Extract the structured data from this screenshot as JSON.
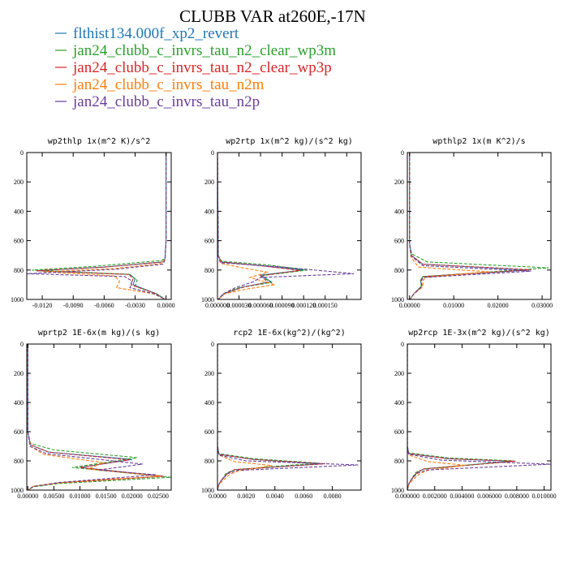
{
  "page_title": "CLUBB VAR at260E,-17N",
  "legend": [
    {
      "label": "flthist134.000f_xp2_revert",
      "color": "#1f77b4"
    },
    {
      "label": "jan24_clubb_c_invrs_tau_n2_clear_wp3m",
      "color": "#2ca02c"
    },
    {
      "label": "jan24_clubb_c_invrs_tau_n2_clear_wp3p",
      "color": "#d62728"
    },
    {
      "label": "jan24_clubb_c_invrs_tau_n2m",
      "color": "#ff7f0e"
    },
    {
      "label": "jan24_clubb_c_invrs_tau_n2p",
      "color": "#6a3d9a"
    }
  ],
  "chart_data": [
    {
      "type": "line",
      "title": "wp2thlp  1x(m^2 K)/s^2",
      "xlim": [
        -0.0135,
        0.0005
      ],
      "ylim": [
        1000,
        0
      ],
      "xticks": [
        -0.012,
        -0.009,
        -0.006,
        -0.003,
        0.0
      ],
      "xtick_labels": [
        "-0.0120",
        "-0.0090",
        "-0.0060",
        "-0.0030",
        "0.0000"
      ],
      "yticks": [
        0,
        200,
        400,
        600,
        800,
        1000
      ],
      "ytick_labels": [
        "0",
        "200",
        "400",
        "600",
        "800",
        "1000"
      ],
      "series": [
        {
          "style": "solid",
          "x": [
            0,
            0,
            -0.0001,
            -0.0003,
            -0.006,
            -0.0125,
            -0.0035,
            -0.003,
            -0.0032,
            -0.001,
            -0.0001
          ],
          "y": [
            0,
            600,
            720,
            745,
            780,
            805,
            830,
            860,
            900,
            960,
            1000
          ]
        },
        {
          "style": "dashed",
          "x": [
            0,
            0,
            -0.0001,
            -0.0004,
            -0.007,
            -0.013,
            -0.0035,
            -0.0028,
            -0.003,
            -0.0008,
            -0.0001
          ],
          "y": [
            0,
            600,
            715,
            735,
            775,
            800,
            830,
            870,
            910,
            965,
            1000
          ]
        },
        {
          "style": "dashed",
          "x": [
            0,
            0,
            -0.0001,
            -0.0003,
            -0.006,
            -0.0126,
            -0.0036,
            -0.0032,
            -0.0034,
            -0.001,
            -0.0001
          ],
          "y": [
            0,
            600,
            720,
            745,
            780,
            805,
            830,
            860,
            900,
            960,
            1000
          ]
        },
        {
          "style": "dashed",
          "x": [
            0,
            0,
            -0.0001,
            -0.0004,
            -0.005,
            -0.0118,
            -0.005,
            -0.0045,
            -0.0048,
            -0.0012,
            -0.0001
          ],
          "y": [
            0,
            600,
            725,
            755,
            790,
            812,
            840,
            875,
            920,
            962,
            1000
          ]
        },
        {
          "style": "dashed",
          "x": [
            0,
            0,
            -0.0001,
            -0.0003,
            -0.005,
            -0.0135,
            -0.004,
            -0.0033,
            -0.0035,
            -0.001,
            -0.0001
          ],
          "y": [
            0,
            600,
            730,
            760,
            795,
            825,
            845,
            875,
            920,
            965,
            1000
          ]
        }
      ]
    },
    {
      "type": "line",
      "title": "wp2rtp  1x(m^2 kg)/(s^2 kg)",
      "xlim": [
        0,
        0.0002
      ],
      "ylim": [
        1000,
        0
      ],
      "xticks": [
        0.0,
        3e-05,
        6e-05,
        9e-05,
        0.00012,
        0.00015,
        0.00018
      ],
      "xtick_labels": [
        "0.000000",
        "0.000030",
        "0.000060",
        "0.000090",
        "0.000120",
        "0.000150",
        ""
      ],
      "yticks": [
        0,
        200,
        400,
        600,
        800,
        1000
      ],
      "ytick_labels": [
        "0",
        "200",
        "400",
        "600",
        "800",
        "1000"
      ],
      "series": [
        {
          "style": "solid",
          "x": [
            0,
            1e-06,
            5e-06,
            6e-05,
            0.00012,
            6e-05,
            7.5e-05,
            3.5e-05,
            1e-05,
            1e-06
          ],
          "y": [
            0,
            700,
            745,
            770,
            800,
            835,
            880,
            915,
            960,
            1000
          ]
        },
        {
          "style": "dashed",
          "x": [
            0,
            1e-06,
            6e-06,
            7e-05,
            0.000125,
            6e-05,
            7.5e-05,
            3e-05,
            8e-06,
            1e-06
          ],
          "y": [
            0,
            700,
            740,
            765,
            800,
            840,
            885,
            920,
            960,
            1000
          ]
        },
        {
          "style": "dashed",
          "x": [
            0,
            1e-06,
            5e-06,
            6e-05,
            0.000115,
            6e-05,
            7e-05,
            3.5e-05,
            1e-05,
            1e-06
          ],
          "y": [
            0,
            700,
            745,
            770,
            802,
            838,
            882,
            918,
            960,
            1000
          ]
        },
        {
          "style": "dashed",
          "x": [
            0,
            1e-06,
            5e-06,
            3.5e-05,
            7e-05,
            4.5e-05,
            8e-05,
            4e-05,
            1e-05,
            1e-06
          ],
          "y": [
            0,
            700,
            755,
            785,
            815,
            850,
            900,
            930,
            962,
            1000
          ]
        },
        {
          "style": "dashed",
          "x": [
            0,
            1e-06,
            4e-06,
            8e-05,
            0.00019,
            6e-05,
            5e-05,
            2.5e-05,
            8e-06,
            1e-06
          ],
          "y": [
            0,
            700,
            750,
            775,
            825,
            850,
            880,
            920,
            962,
            1000
          ]
        }
      ]
    },
    {
      "type": "line",
      "title": "wpthlp2  1x(m K^2)/s",
      "xlim": [
        -0.0005,
        0.032
      ],
      "ylim": [
        1000,
        0
      ],
      "xticks": [
        0.0,
        0.01,
        0.02,
        0.03
      ],
      "xtick_labels": [
        "0.00000",
        "0.01000",
        "0.02000",
        "0.03000"
      ],
      "yticks": [
        0,
        200,
        400,
        600,
        800,
        1000
      ],
      "ytick_labels": [
        "0",
        "200",
        "400",
        "600",
        "800",
        "1000"
      ],
      "series": [
        {
          "style": "solid",
          "x": [
            0,
            0,
            0.0004,
            0.003,
            0.027,
            0.003,
            0.0025,
            0.0027,
            0.001,
            0.0001
          ],
          "y": [
            0,
            620,
            700,
            760,
            800,
            845,
            870,
            910,
            960,
            1000
          ]
        },
        {
          "style": "dashed",
          "x": [
            0,
            0,
            0.0005,
            0.004,
            0.0315,
            0.003,
            0.0025,
            0.0027,
            0.001,
            0.0001
          ],
          "y": [
            0,
            620,
            690,
            745,
            785,
            845,
            870,
            910,
            960,
            1000
          ]
        },
        {
          "style": "dashed",
          "x": [
            0,
            0,
            0.0004,
            0.003,
            0.0275,
            0.003,
            0.0026,
            0.0028,
            0.001,
            0.0001
          ],
          "y": [
            0,
            620,
            700,
            760,
            798,
            845,
            870,
            910,
            960,
            1000
          ]
        },
        {
          "style": "dashed",
          "x": [
            0,
            0,
            0.0003,
            0.002,
            0.018,
            0.0035,
            0.003,
            0.003,
            0.001,
            0.0001
          ],
          "y": [
            0,
            620,
            710,
            780,
            812,
            850,
            878,
            915,
            962,
            1000
          ]
        },
        {
          "style": "dashed",
          "x": [
            0,
            0,
            0.0004,
            0.003,
            0.0275,
            0.0032,
            0.0026,
            0.0028,
            0.001,
            0.0001
          ],
          "y": [
            0,
            620,
            705,
            770,
            808,
            850,
            875,
            912,
            962,
            1000
          ]
        }
      ]
    },
    {
      "type": "line",
      "title": "wprtp2  1E-6x(m kg)/(s kg)",
      "xlim": [
        -0.0002,
        0.0275
      ],
      "ylim": [
        1000,
        0
      ],
      "xticks": [
        0.0,
        0.005,
        0.01,
        0.015,
        0.02,
        0.025
      ],
      "xtick_labels": [
        "0.00000",
        "0.00500",
        "0.01000",
        "0.01500",
        "0.02000",
        "0.02500"
      ],
      "yticks": [
        0,
        200,
        400,
        600,
        800,
        1000
      ],
      "ytick_labels": [
        "0",
        "200",
        "400",
        "600",
        "800",
        "1000"
      ],
      "series": [
        {
          "style": "solid",
          "x": [
            0,
            0,
            0.0005,
            0.004,
            0.02,
            0.01,
            0.026,
            0.006,
            0.001,
            0.0001
          ],
          "y": [
            0,
            600,
            690,
            740,
            790,
            845,
            905,
            950,
            975,
            1000
          ]
        },
        {
          "style": "dashed",
          "x": [
            0,
            0,
            0.0005,
            0.005,
            0.021,
            0.0085,
            0.0275,
            0.006,
            0.001,
            0.0001
          ],
          "y": [
            0,
            600,
            680,
            725,
            778,
            845,
            912,
            955,
            978,
            1000
          ]
        },
        {
          "style": "dashed",
          "x": [
            0,
            0,
            0.0005,
            0.004,
            0.0195,
            0.01,
            0.026,
            0.006,
            0.001,
            0.0001
          ],
          "y": [
            0,
            600,
            690,
            740,
            792,
            845,
            905,
            950,
            975,
            1000
          ]
        },
        {
          "style": "dashed",
          "x": [
            0,
            0,
            0.0005,
            0.003,
            0.0145,
            0.0115,
            0.0255,
            0.006,
            0.001,
            0.0001
          ],
          "y": [
            0,
            600,
            700,
            755,
            812,
            855,
            905,
            950,
            975,
            1000
          ]
        },
        {
          "style": "dashed",
          "x": [
            0,
            0,
            0.0004,
            0.0035,
            0.022,
            0.0135,
            0.0245,
            0.006,
            0.001,
            0.0001
          ],
          "y": [
            0,
            600,
            700,
            750,
            822,
            862,
            895,
            948,
            975,
            1000
          ]
        }
      ]
    },
    {
      "type": "line",
      "title": "rcp2  1E-6x(kg^2)/(kg^2)",
      "xlim": [
        0,
        0.01
      ],
      "ylim": [
        1000,
        0
      ],
      "xticks": [
        0.0,
        0.002,
        0.004,
        0.006,
        0.008
      ],
      "xtick_labels": [
        "0.0000",
        "0.0020",
        "0.0040",
        "0.0060",
        "0.0080"
      ],
      "yticks": [
        0,
        200,
        400,
        600,
        800,
        1000
      ],
      "ytick_labels": [
        "0",
        "200",
        "400",
        "600",
        "800",
        "1000"
      ],
      "series": [
        {
          "style": "solid",
          "x": [
            0,
            0,
            0.0001,
            0.0025,
            0.0073,
            0.0012,
            0.0007,
            0.0003,
            0.0001,
            0
          ],
          "y": [
            0,
            700,
            755,
            790,
            820,
            860,
            885,
            930,
            960,
            1000
          ]
        },
        {
          "style": "dashed",
          "x": [
            0,
            0,
            0.0001,
            0.0025,
            0.007,
            0.0012,
            0.0006,
            0.0003,
            0.0001,
            0
          ],
          "y": [
            0,
            700,
            750,
            785,
            815,
            860,
            885,
            930,
            960,
            1000
          ]
        },
        {
          "style": "dashed",
          "x": [
            0,
            0,
            0.0001,
            0.0025,
            0.0075,
            0.0012,
            0.0007,
            0.0003,
            0.0001,
            0
          ],
          "y": [
            0,
            700,
            755,
            790,
            820,
            860,
            885,
            930,
            960,
            1000
          ]
        },
        {
          "style": "dashed",
          "x": [
            0,
            0,
            0.0001,
            0.0012,
            0.0038,
            0.0015,
            0.0009,
            0.0004,
            0.0001,
            0
          ],
          "y": [
            0,
            700,
            760,
            805,
            832,
            868,
            890,
            932,
            960,
            1000
          ]
        },
        {
          "style": "dashed",
          "x": [
            0,
            0,
            0.0001,
            0.002,
            0.0098,
            0.0014,
            0.0007,
            0.0003,
            0.0001,
            0
          ],
          "y": [
            0,
            700,
            760,
            800,
            828,
            865,
            888,
            930,
            960,
            1000
          ]
        }
      ]
    },
    {
      "type": "line",
      "title": "wp2rcp  1E-3x(m^2 kg)/(s^2 kg)",
      "xlim": [
        0,
        0.0105
      ],
      "ylim": [
        1000,
        0
      ],
      "xticks": [
        0.0,
        0.002,
        0.004,
        0.006,
        0.008,
        0.01
      ],
      "xtick_labels": [
        "0.000000",
        "0.002000",
        "0.004000",
        "0.006000",
        "0.008000",
        "0.010000"
      ],
      "yticks": [
        0,
        200,
        400,
        600,
        800,
        1000
      ],
      "ytick_labels": [
        "0",
        "200",
        "400",
        "600",
        "800",
        "1000"
      ],
      "series": [
        {
          "style": "solid",
          "x": [
            0,
            0,
            0.0001,
            0.003,
            0.0077,
            0.0012,
            0.0007,
            0.0003,
            0.0001,
            0
          ],
          "y": [
            0,
            700,
            750,
            785,
            802,
            855,
            880,
            925,
            960,
            1000
          ]
        },
        {
          "style": "dashed",
          "x": [
            0,
            0,
            0.0001,
            0.003,
            0.0078,
            0.0012,
            0.0006,
            0.0003,
            0.0001,
            0
          ],
          "y": [
            0,
            700,
            745,
            780,
            800,
            855,
            880,
            925,
            960,
            1000
          ]
        },
        {
          "style": "dashed",
          "x": [
            0,
            0,
            0.0001,
            0.003,
            0.0079,
            0.0012,
            0.0007,
            0.0003,
            0.0001,
            0
          ],
          "y": [
            0,
            700,
            750,
            785,
            802,
            855,
            880,
            925,
            960,
            1000
          ]
        },
        {
          "style": "dashed",
          "x": [
            0,
            0,
            0.0001,
            0.0015,
            0.0042,
            0.0015,
            0.0009,
            0.0004,
            0.0001,
            0
          ],
          "y": [
            0,
            700,
            760,
            805,
            830,
            865,
            888,
            930,
            960,
            1000
          ]
        },
        {
          "style": "dashed",
          "x": [
            0,
            0,
            0.0001,
            0.0025,
            0.0105,
            0.0014,
            0.0007,
            0.0003,
            0.0001,
            0
          ],
          "y": [
            0,
            700,
            755,
            795,
            822,
            862,
            886,
            928,
            960,
            1000
          ]
        }
      ]
    }
  ]
}
